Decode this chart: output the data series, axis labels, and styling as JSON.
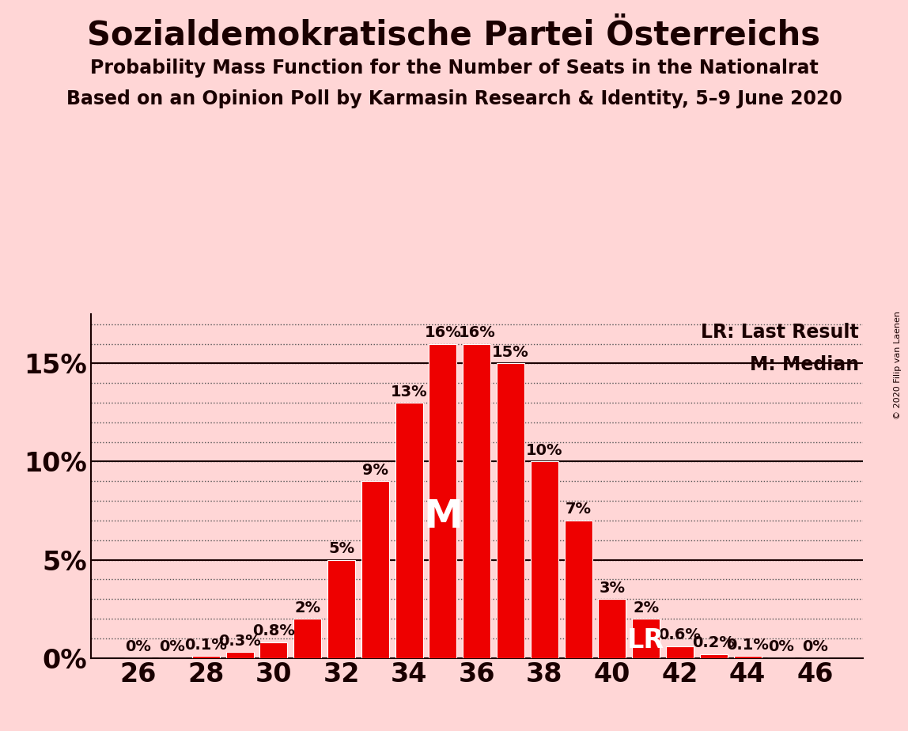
{
  "title": "Sozialdemokratische Partei Österreichs",
  "subtitle1": "Probability Mass Function for the Number of Seats in the Nationalrat",
  "subtitle2": "Based on an Opinion Poll by Karmasin Research & Identity, 5–9 June 2020",
  "copyright": "© 2020 Filip van Laenen",
  "seats": [
    26,
    27,
    28,
    29,
    30,
    31,
    32,
    33,
    34,
    35,
    36,
    37,
    38,
    39,
    40,
    41,
    42,
    43,
    44,
    45,
    46
  ],
  "probs": [
    0.0,
    0.0,
    0.1,
    0.3,
    0.8,
    2.0,
    5.0,
    9.0,
    13.0,
    16.0,
    16.0,
    15.0,
    10.0,
    7.0,
    3.0,
    2.0,
    0.6,
    0.2,
    0.1,
    0.0,
    0.0
  ],
  "labels": [
    "0%",
    "0%",
    "0.1%",
    "0.3%",
    "0.8%",
    "2%",
    "5%",
    "9%",
    "13%",
    "16%",
    "16%",
    "15%",
    "10%",
    "7%",
    "3%",
    "2%",
    "0.6%",
    "0.2%",
    "0.1%",
    "0%",
    "0%"
  ],
  "bar_color": "#EE0000",
  "background_color": "#FFD6D6",
  "text_color": "#1a0000",
  "ylim": [
    0,
    17.5
  ],
  "median_seat": 35,
  "lr_seat": 41,
  "legend_lr": "LR: Last Result",
  "legend_m": "M: Median",
  "title_fontsize": 30,
  "subtitle_fontsize": 17,
  "ylabel_fontsize": 24,
  "xtick_fontsize": 24,
  "bar_label_fontsize": 14,
  "legend_fontsize": 17,
  "M_fontsize": 36,
  "LR_fontsize": 24
}
